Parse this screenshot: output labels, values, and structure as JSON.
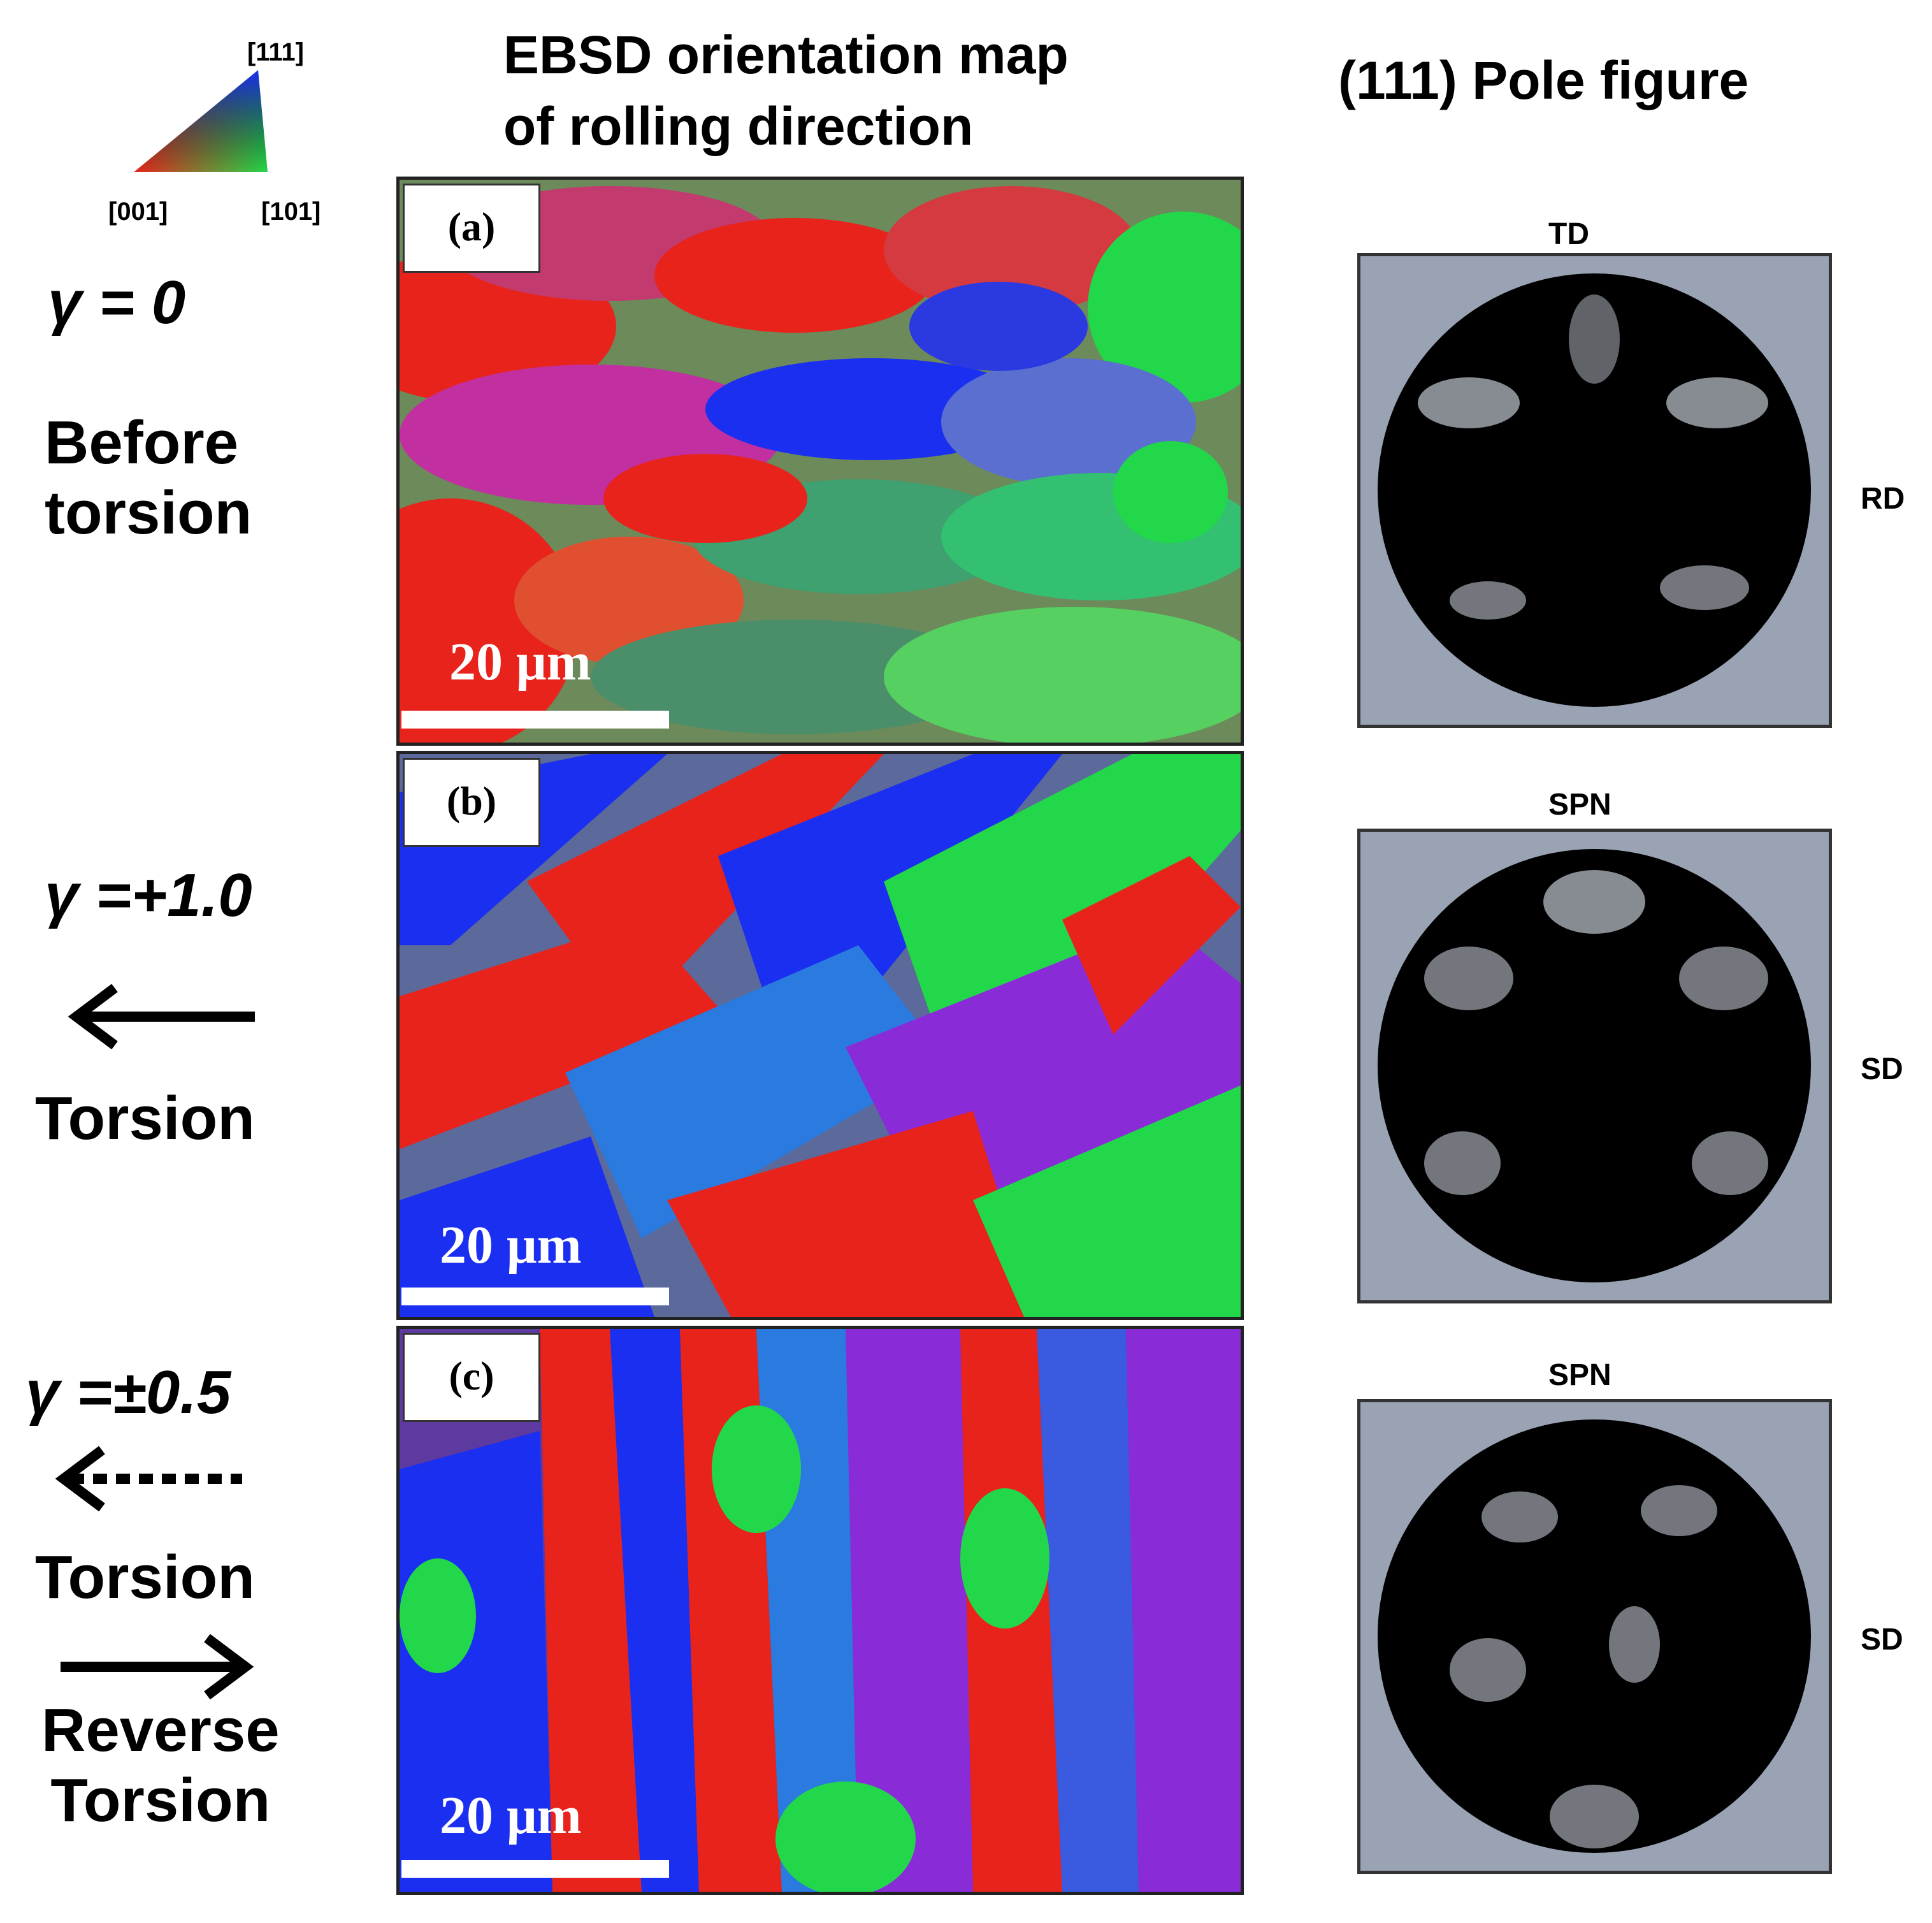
{
  "legend": {
    "corner_top": "[111]",
    "corner_left": "[001]",
    "corner_right": "[101]"
  },
  "headers": {
    "map_title": "EBSD orientation map\nof rolling direction",
    "pole_title": "(111) Pole figure"
  },
  "rows": [
    {
      "gamma": "γ = 0",
      "desc": "Before\ntorsion",
      "panel": "(a)",
      "scale": "20 μm",
      "pole_top": "TD",
      "pole_side": "RD"
    },
    {
      "gamma": "γ =+1.0",
      "desc": "Torsion",
      "panel": "(b)",
      "scale": "20 μm",
      "pole_top": "SPN",
      "pole_side": "SD"
    },
    {
      "gamma": "γ =±0.5",
      "desc1": "Torsion",
      "desc2": "Reverse\nTorsion",
      "panel": "(c)",
      "scale": "20 μm",
      "pole_top": "SPN",
      "pole_side": "SD"
    }
  ],
  "colors": {
    "red": "#e8231c",
    "green": "#22d84a",
    "blue": "#1b2ff0",
    "purple": "#8a2bd8",
    "pole_bg": "#9aa3b3"
  },
  "icons": {
    "arrow_left": "arrow-left-icon",
    "arrow_left_dotted": "arrow-left-dotted-icon",
    "arrow_right": "arrow-right-icon"
  }
}
